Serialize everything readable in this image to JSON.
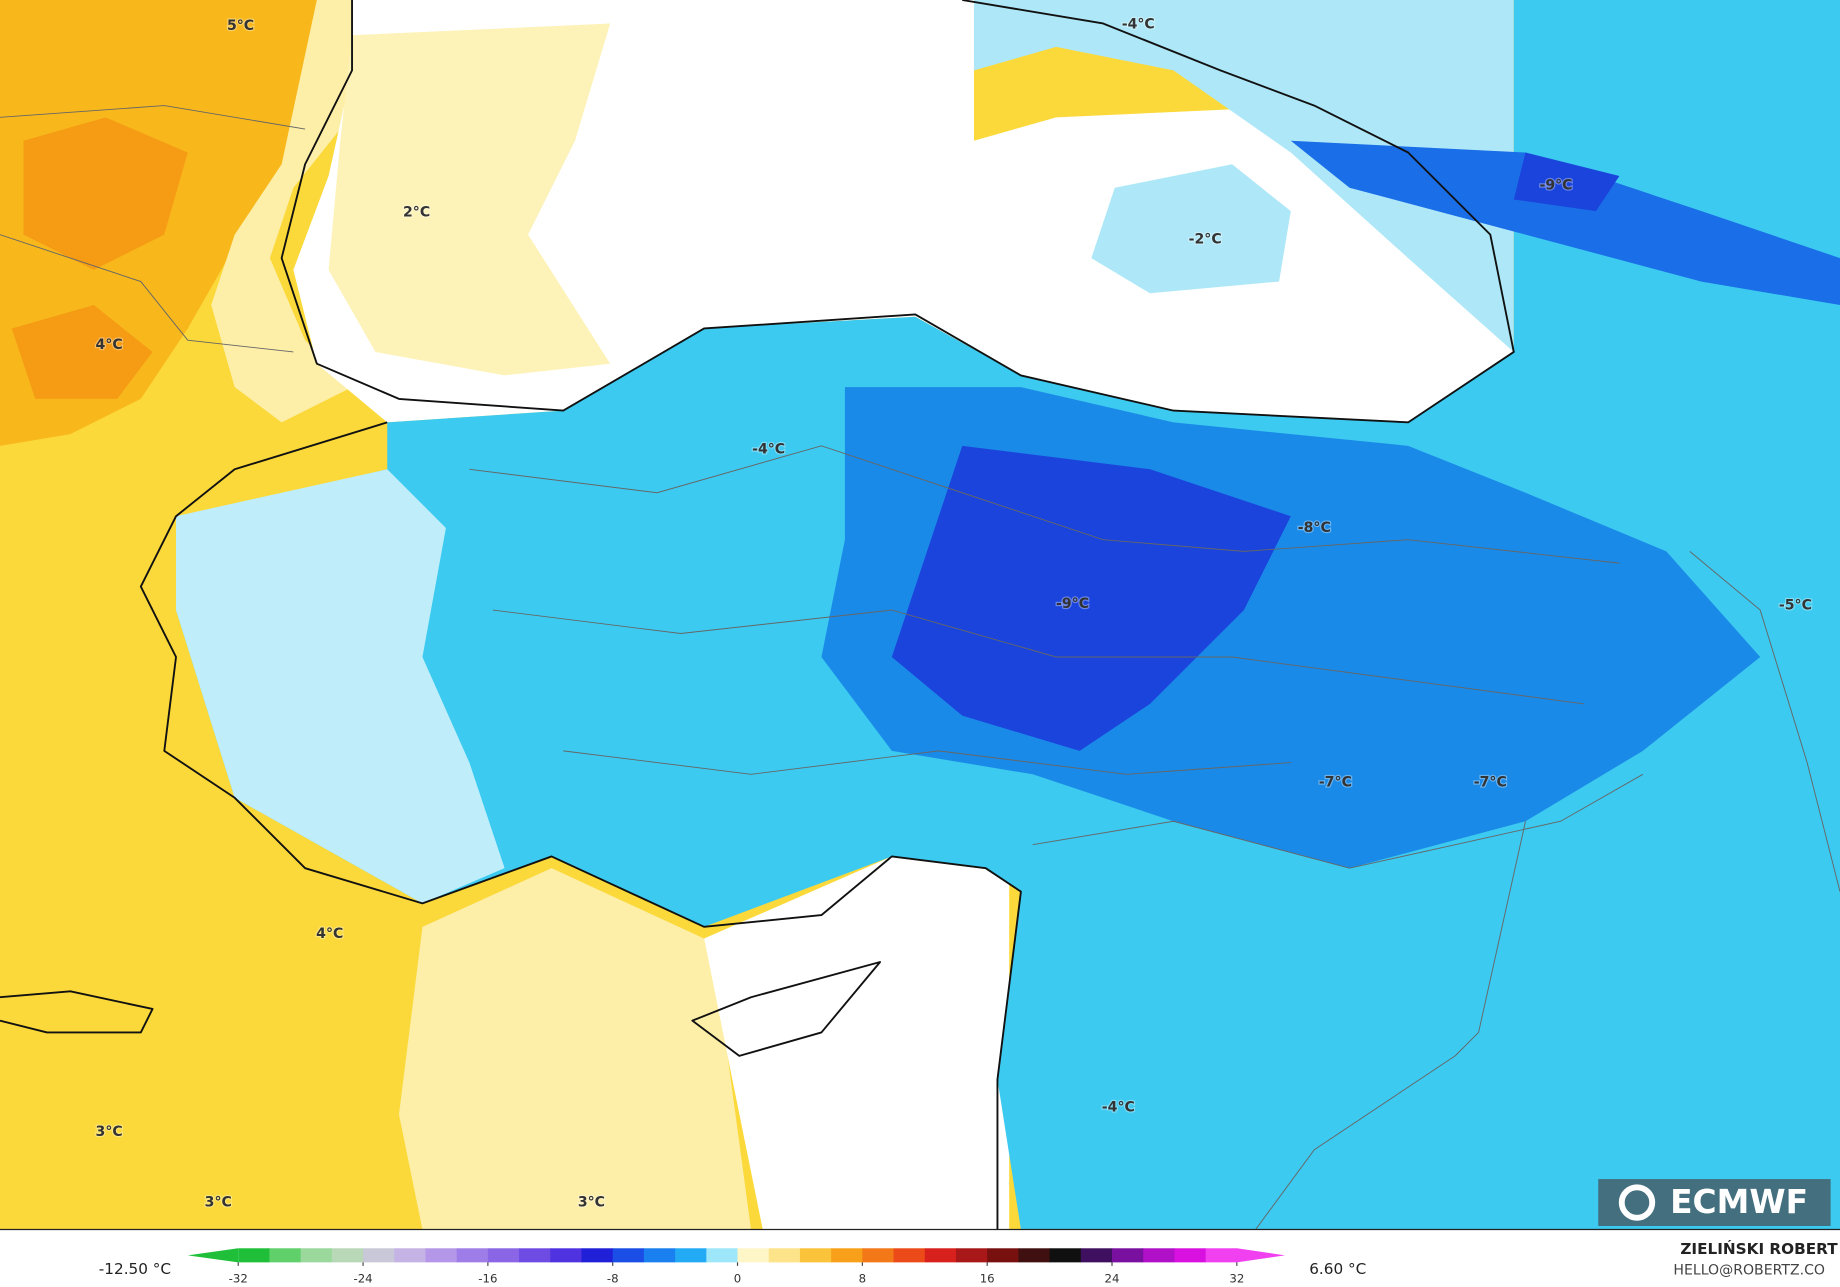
{
  "map": {
    "labels": [
      "5°C",
      "2°C",
      "4°C",
      "-4°C",
      "-2°C",
      "-9°C",
      "-4°C",
      "-8°C",
      "-9°C",
      "-5°C",
      "-7°C",
      "-7°C",
      "4°C",
      "3°C",
      "3°C",
      "3°C",
      "-4°C"
    ]
  },
  "colorbar": {
    "range": [
      -32,
      32
    ],
    "ticks": [
      -32,
      -24,
      -16,
      -8,
      0,
      8,
      16,
      24,
      32
    ],
    "colors": [
      "#1fbf3a",
      "#5fd06a",
      "#9ad89c",
      "#b8d8b8",
      "#c8c8d8",
      "#c6b3e6",
      "#b497e8",
      "#9f7de8",
      "#8a66e6",
      "#6e4ce4",
      "#4f33e0",
      "#2020d8",
      "#1a4ee6",
      "#1a80f0",
      "#22aaf4",
      "#9ee6fa",
      "#fff6c8",
      "#fde38a",
      "#fbc33a",
      "#f8a01a",
      "#f27818",
      "#ec4a18",
      "#d8201c",
      "#a81818",
      "#781010",
      "#401010",
      "#101010",
      "#401060",
      "#7a10a0",
      "#b010c8",
      "#d810e0",
      "#f040f0"
    ],
    "min_label": "-12.50 °C",
    "max_label": "6.60 °C"
  },
  "logo": "ECMWF",
  "credit": {
    "author": "ZIELIŃSKI ROBERT",
    "email": "HELLO@ROBERTZ.CO"
  }
}
